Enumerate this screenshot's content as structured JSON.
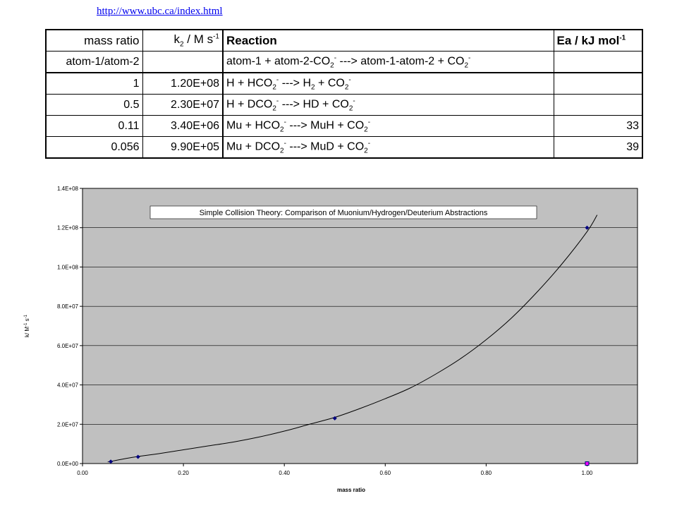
{
  "url_text": "http://www.ubc.ca/index.html",
  "table": {
    "headers": {
      "mass_ratio": "mass ratio",
      "k2": "k",
      "k2_sub": "2",
      "k2_unit": " / M s",
      "k2_sup": "-1",
      "reaction": "Reaction",
      "ea": "Ea / kJ mol",
      "ea_sup": "-1"
    },
    "subheader": {
      "label": "atom-1/atom-2",
      "reaction_parts": [
        "atom-1 + atom-2-CO",
        "2",
        "-",
        " --->  atom-1-atom-2  +  CO",
        "2",
        "-"
      ]
    },
    "rows": [
      {
        "mass_ratio": "1",
        "k2": "1.20E+08",
        "reaction": [
          "H + HCO",
          "2",
          "-",
          " ---> H",
          "2",
          "",
          " + CO",
          "2",
          "-"
        ],
        "ea": ""
      },
      {
        "mass_ratio": "0.5",
        "k2": "2.30E+07",
        "reaction": [
          "H + DCO",
          "2",
          "-",
          " ---> HD + CO",
          "2",
          "-"
        ],
        "ea": ""
      },
      {
        "mass_ratio": "0.11",
        "k2": "3.40E+06",
        "reaction": [
          "Mu + HCO",
          "2",
          "-",
          " ---> MuH + CO",
          "2",
          "-"
        ],
        "ea": "33"
      },
      {
        "mass_ratio": "0.056",
        "k2": "9.90E+05",
        "reaction": [
          "Mu + DCO",
          "2",
          "-",
          " ---> MuD + CO",
          "2",
          "-"
        ],
        "ea": "39"
      }
    ]
  },
  "chart_data": {
    "type": "scatter",
    "title": "Simple Collision Theory:  Comparison of Muonium/Hydrogen/Deuterium Abstractions",
    "xlabel": "mass ratio",
    "ylabel": "k/ M-1 s-1",
    "xlim": [
      0,
      1.1
    ],
    "ylim": [
      0,
      140000000
    ],
    "xticks": [
      0,
      0.2,
      0.4,
      0.6,
      0.8,
      1.0
    ],
    "xtick_labels": [
      "0.00",
      "0.20",
      "0.40",
      "0.60",
      "0.80",
      "1.00"
    ],
    "yticks": [
      0,
      20000000,
      40000000,
      60000000,
      80000000,
      100000000,
      120000000,
      140000000
    ],
    "ytick_labels": [
      "0.0E+00",
      "2.0E+07",
      "4.0E+07",
      "6.0E+07",
      "8.0E+07",
      "1.0E+08",
      "1.2E+08",
      "1.4E+08"
    ],
    "grid": "horizontal",
    "plot_bg": "#c0c0c0",
    "marker_color": "#000080",
    "series": [
      {
        "values": [
          [
            0.056,
            990000
          ],
          [
            0.11,
            3400000
          ],
          [
            0.5,
            23000000
          ],
          [
            1.0,
            120000000
          ]
        ]
      },
      {
        "values": [
          [
            1.0,
            0
          ]
        ]
      }
    ],
    "curve": [
      [
        0.05,
        800000
      ],
      [
        0.1,
        3200000
      ],
      [
        0.15,
        5000000
      ],
      [
        0.2,
        7000000
      ],
      [
        0.25,
        9000000
      ],
      [
        0.3,
        11000000
      ],
      [
        0.35,
        13500000
      ],
      [
        0.4,
        16500000
      ],
      [
        0.45,
        20000000
      ],
      [
        0.5,
        23500000
      ],
      [
        0.55,
        28000000
      ],
      [
        0.6,
        33000000
      ],
      [
        0.65,
        38500000
      ],
      [
        0.7,
        45500000
      ],
      [
        0.75,
        53500000
      ],
      [
        0.8,
        63000000
      ],
      [
        0.85,
        74000000
      ],
      [
        0.9,
        87000000
      ],
      [
        0.95,
        101500000
      ],
      [
        1.0,
        118000000
      ],
      [
        1.02,
        126500000
      ]
    ]
  }
}
